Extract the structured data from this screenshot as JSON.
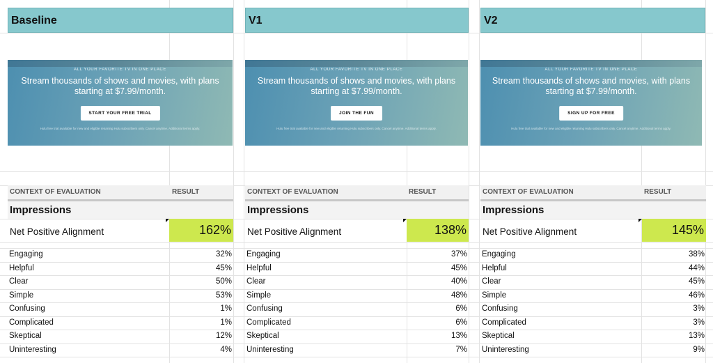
{
  "columns": [
    {
      "title": "Baseline",
      "banner": {
        "eyebrow": "ALL YOUR FAVORITE TV IN ONE PLACE",
        "headline": "Stream thousands of shows and movies, with plans starting at $7.99/month.",
        "cta": "START YOUR FREE TRIAL",
        "fine_print": "Hulu free trial available for new and eligible returning Hulu subscribers only. Cancel anytime. Additional terms apply."
      },
      "context_label": "CONTEXT OF EVALUATION",
      "result_label": "RESULT",
      "section": "Impressions",
      "npa_label": "Net Positive Alignment",
      "npa_value": "162%",
      "metrics": [
        {
          "label": "Engaging",
          "value": "32%"
        },
        {
          "label": "Helpful",
          "value": "45%"
        },
        {
          "label": "Clear",
          "value": "50%"
        },
        {
          "label": "Simple",
          "value": "53%"
        },
        {
          "label": "Confusing",
          "value": "1%"
        },
        {
          "label": "Complicated",
          "value": "1%"
        },
        {
          "label": "Skeptical",
          "value": "12%"
        },
        {
          "label": "Uninteresting",
          "value": "4%"
        }
      ]
    },
    {
      "title": "V1",
      "banner": {
        "eyebrow": "ALL YOUR FAVORITE TV IN ONE PLACE",
        "headline": "Stream thousands of shows and movies, with plans starting at $7.99/month.",
        "cta": "JOIN THE FUN",
        "fine_print": "Hulu free trial available for new and eligible returning Hulu subscribers only. Cancel anytime. Additional terms apply."
      },
      "context_label": "CONTEXT OF EVALUATION",
      "result_label": "RESULT",
      "section": "Impressions",
      "npa_label": "Net Positive Alignment",
      "npa_value": "138%",
      "metrics": [
        {
          "label": "Engaging",
          "value": "37%"
        },
        {
          "label": "Helpful",
          "value": "45%"
        },
        {
          "label": "Clear",
          "value": "40%"
        },
        {
          "label": "Simple",
          "value": "48%"
        },
        {
          "label": "Confusing",
          "value": "6%"
        },
        {
          "label": "Complicated",
          "value": "6%"
        },
        {
          "label": "Skeptical",
          "value": "13%"
        },
        {
          "label": "Uninteresting",
          "value": "7%"
        }
      ]
    },
    {
      "title": "V2",
      "banner": {
        "eyebrow": "ALL YOUR FAVORITE TV IN ONE PLACE",
        "headline": "Stream thousands of shows and movies, with plans starting at $7.99/month.",
        "cta": "SIGN UP FOR FREE",
        "fine_print": "Hulu free trial available for new and eligible returning Hulu subscribers only. Cancel anytime. Additional terms apply."
      },
      "context_label": "CONTEXT OF EVALUATION",
      "result_label": "RESULT",
      "section": "Impressions",
      "npa_label": "Net Positive Alignment",
      "npa_value": "145%",
      "metrics": [
        {
          "label": "Engaging",
          "value": "38%"
        },
        {
          "label": "Helpful",
          "value": "44%"
        },
        {
          "label": "Clear",
          "value": "45%"
        },
        {
          "label": "Simple",
          "value": "46%"
        },
        {
          "label": "Confusing",
          "value": "3%"
        },
        {
          "label": "Complicated",
          "value": "3%"
        },
        {
          "label": "Skeptical",
          "value": "13%"
        },
        {
          "label": "Uninteresting",
          "value": "9%"
        }
      ]
    }
  ],
  "colors": {
    "header_bg": "#86c8cd",
    "npa_highlight": "#cde84e",
    "gridline": "#e3e3e3"
  }
}
